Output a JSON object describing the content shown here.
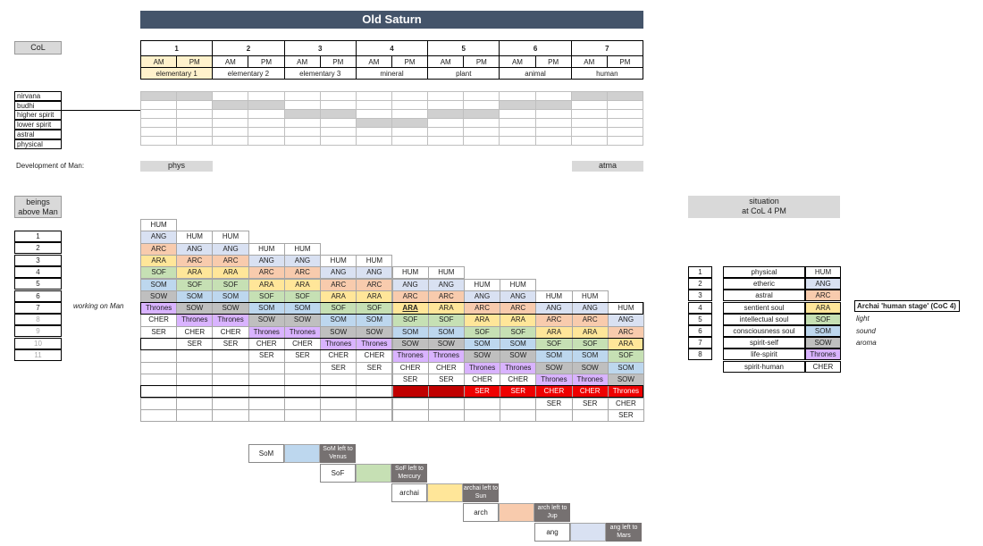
{
  "title": "Old Saturn",
  "col_label": "CoL",
  "periods": [
    "1",
    "2",
    "3",
    "4",
    "5",
    "6",
    "7"
  ],
  "ampm": [
    "AM",
    "PM"
  ],
  "elements": [
    "elementary 1",
    "elementary 2",
    "elementary 3",
    "mineral",
    "plant",
    "animal",
    "human"
  ],
  "levels": [
    "nirvana",
    "budhi",
    "higher spirit",
    "lower spirit",
    "astral",
    "physical"
  ],
  "dev_label": "Development of Man:",
  "dev_phys": "phys",
  "dev_atma": "atma",
  "beings_label_1": "beings",
  "beings_label_2": "above Man",
  "row_nums": [
    "1",
    "2",
    "3",
    "4",
    "5",
    "6",
    "7",
    "8",
    "9",
    "10",
    "11"
  ],
  "working_on_man": "working on Man",
  "situation_1": "situation",
  "situation_2": "at CoL 4 PM",
  "situation_rows": [
    {
      "n": "1",
      "name": "physical",
      "being": "HUM",
      "cls": ""
    },
    {
      "n": "2",
      "name": "etheric",
      "being": "ANG",
      "cls": "ang"
    },
    {
      "n": "3",
      "name": "astral",
      "being": "ARC",
      "cls": "arc"
    },
    {
      "n": "4",
      "name": "sentient soul",
      "being": "ARA",
      "cls": "ara"
    },
    {
      "n": "5",
      "name": "intellectual soul",
      "being": "SOF",
      "cls": "sof"
    },
    {
      "n": "6",
      "name": "consciousness soul",
      "being": "SOM",
      "cls": "som"
    },
    {
      "n": "7",
      "name": "spirit-self",
      "being": "SOW",
      "cls": "sow"
    },
    {
      "n": "8",
      "name": "life-spirit",
      "being": "Thrones",
      "cls": "thr"
    },
    {
      "n": "",
      "name": "spirit-human",
      "being": "CHER",
      "cls": ""
    }
  ],
  "archai_note": "Archai 'human stage' (CoC 4)",
  "notes": [
    "light",
    "sound",
    "aroma"
  ],
  "grid_rows": [
    [
      "HUM"
    ],
    [
      "ANG",
      "HUM",
      "HUM"
    ],
    [
      "ARC",
      "ANG",
      "ANG",
      "HUM",
      "HUM"
    ],
    [
      "ARA",
      "ARC",
      "ARC",
      "ANG",
      "ANG",
      "HUM",
      "HUM"
    ],
    [
      "SOF",
      "ARA",
      "ARA",
      "ARC",
      "ARC",
      "ANG",
      "ANG",
      "HUM",
      "HUM"
    ],
    [
      "SOM",
      "SOF",
      "SOF",
      "ARA",
      "ARA",
      "ARC",
      "ARC",
      "ANG",
      "ANG",
      "HUM",
      "HUM"
    ],
    [
      "SOW",
      "SOM",
      "SOM",
      "SOF",
      "SOF",
      "ARA",
      "ARA",
      "ARC",
      "ARC",
      "ANG",
      "ANG",
      "HUM",
      "HUM"
    ],
    [
      "Thrones",
      "SOW",
      "SOW",
      "SOM",
      "SOM",
      "SOF",
      "SOF",
      "ARA",
      "ARA",
      "ARC",
      "ARC",
      "ANG",
      "ANG",
      "HUM"
    ],
    [
      "CHER",
      "Thrones",
      "Thrones",
      "SOW",
      "SOW",
      "SOM",
      "SOM",
      "SOF",
      "SOF",
      "ARA",
      "ARA",
      "ARC",
      "ARC",
      "ANG"
    ],
    [
      "SER",
      "CHER",
      "CHER",
      "Thrones",
      "Thrones",
      "SOW",
      "SOW",
      "SOM",
      "SOM",
      "SOF",
      "SOF",
      "ARA",
      "ARA",
      "ARC"
    ],
    [
      "",
      "SER",
      "SER",
      "CHER",
      "CHER",
      "Thrones",
      "Thrones",
      "SOW",
      "SOW",
      "SOM",
      "SOM",
      "SOF",
      "SOF",
      "ARA"
    ],
    [
      "",
      "",
      "",
      "SER",
      "SER",
      "CHER",
      "CHER",
      "Thrones",
      "Thrones",
      "SOW",
      "SOW",
      "SOM",
      "SOM",
      "SOF"
    ],
    [
      "",
      "",
      "",
      "",
      "",
      "SER",
      "SER",
      "CHER",
      "CHER",
      "Thrones",
      "Thrones",
      "SOW",
      "SOW",
      "SOM"
    ],
    [
      "",
      "",
      "",
      "",
      "",
      "",
      "",
      "SER",
      "SER",
      "CHER",
      "CHER",
      "Thrones",
      "Thrones",
      "SOW"
    ],
    [
      "",
      "",
      "",
      "",
      "",
      "",
      "",
      "",
      "",
      "SER",
      "SER",
      "CHER",
      "CHER",
      "Thrones"
    ],
    [
      "",
      "",
      "",
      "",
      "",
      "",
      "",
      "",
      "",
      "",
      "",
      "SER",
      "SER",
      "CHER"
    ],
    [
      "",
      "",
      "",
      "",
      "",
      "",
      "",
      "",
      "",
      "",
      "",
      "",
      "",
      "SER"
    ]
  ],
  "steps": [
    {
      "a": "SoM",
      "b": "SoM left to Venus"
    },
    {
      "a": "SoF",
      "b": "SoF left to Mercury"
    },
    {
      "a": "archai",
      "b": "archai left to Sun"
    },
    {
      "a": "arch",
      "b": "arch left to Jup"
    },
    {
      "a": "ang",
      "b": "ang left to Mars"
    }
  ]
}
